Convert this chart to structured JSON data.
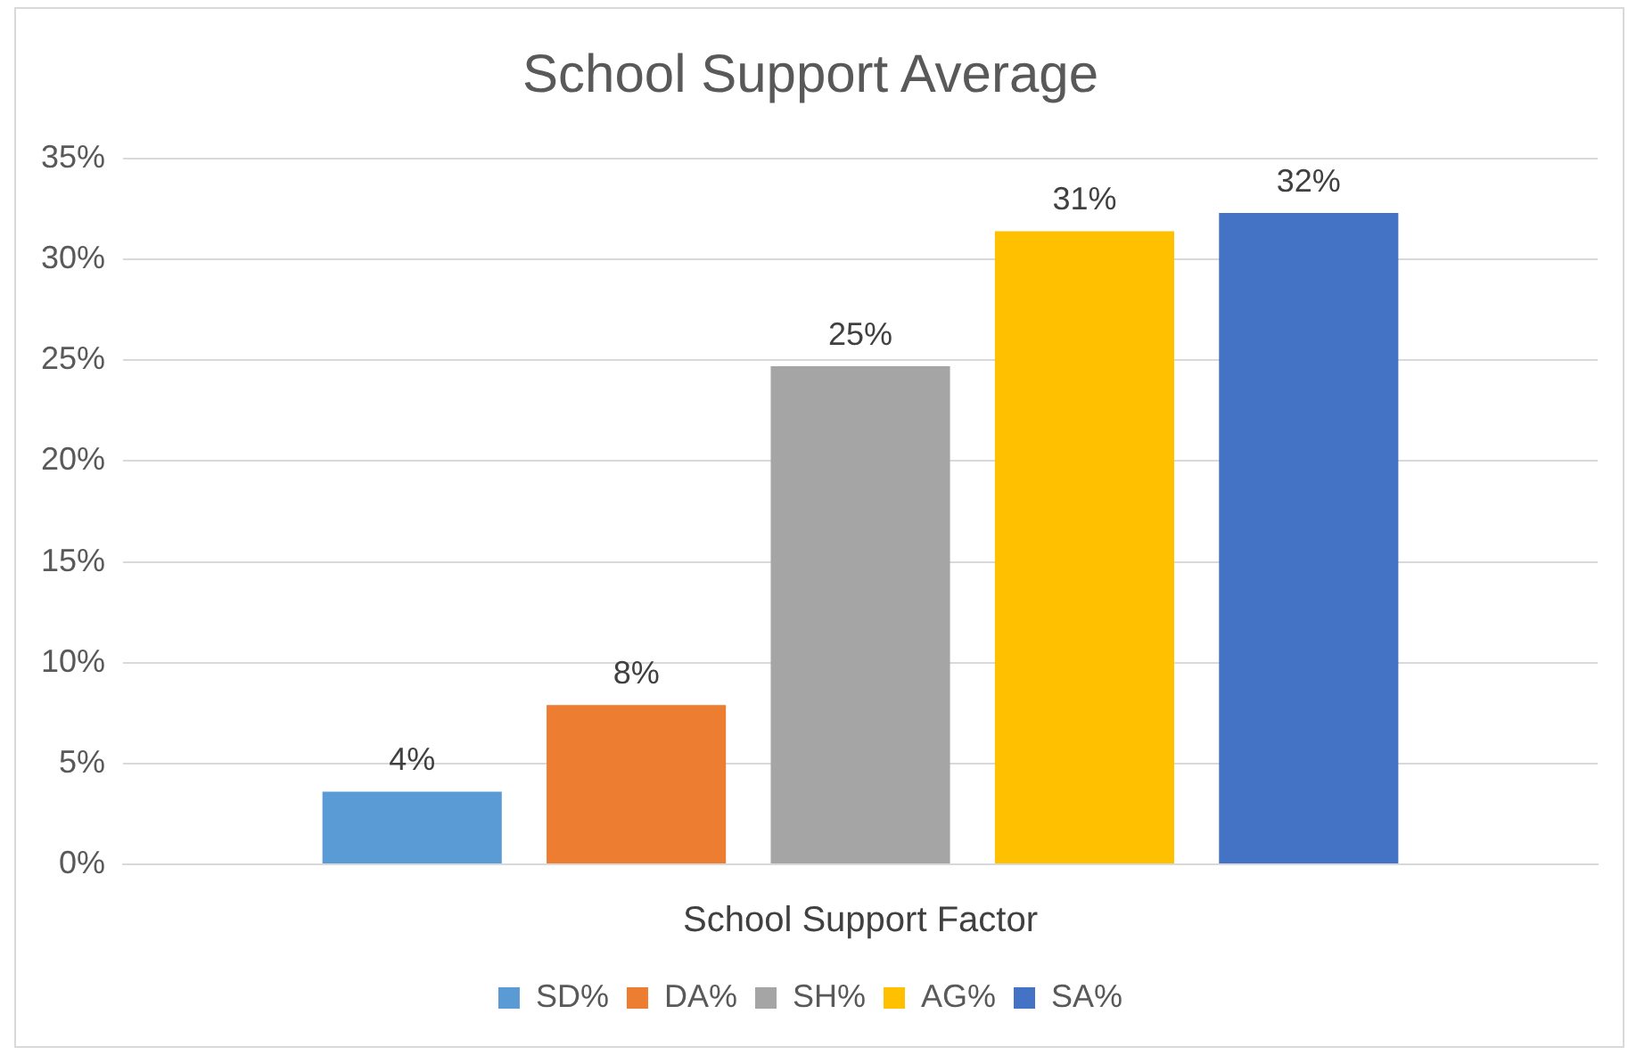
{
  "chart_data": {
    "type": "bar",
    "title": "School Support Average",
    "categories": [
      "School Support Factor"
    ],
    "series": [
      {
        "name": "SD%",
        "color": "#5b9bd5",
        "values": [
          3.6
        ],
        "value_labels": [
          "4%"
        ]
      },
      {
        "name": "DA%",
        "color": "#ed7d31",
        "values": [
          7.9
        ],
        "value_labels": [
          "8%"
        ]
      },
      {
        "name": "SH%",
        "color": "#a5a5a5",
        "values": [
          24.7
        ],
        "value_labels": [
          "25%"
        ]
      },
      {
        "name": "AG%",
        "color": "#ffc000",
        "values": [
          31.4
        ],
        "value_labels": [
          "31%"
        ]
      },
      {
        "name": "SA%",
        "color": "#4472c4",
        "values": [
          32.3
        ],
        "value_labels": [
          "32%"
        ]
      }
    ],
    "ylim": [
      0,
      35
    ],
    "yticks": [
      {
        "value": 0,
        "label": "0%"
      },
      {
        "value": 5,
        "label": "5%"
      },
      {
        "value": 10,
        "label": "10%"
      },
      {
        "value": 15,
        "label": "15%"
      },
      {
        "value": 20,
        "label": "20%"
      },
      {
        "value": 25,
        "label": "25%"
      },
      {
        "value": 30,
        "label": "30%"
      },
      {
        "value": 35,
        "label": "35%"
      }
    ],
    "grid": "y",
    "legend": "bottom"
  }
}
